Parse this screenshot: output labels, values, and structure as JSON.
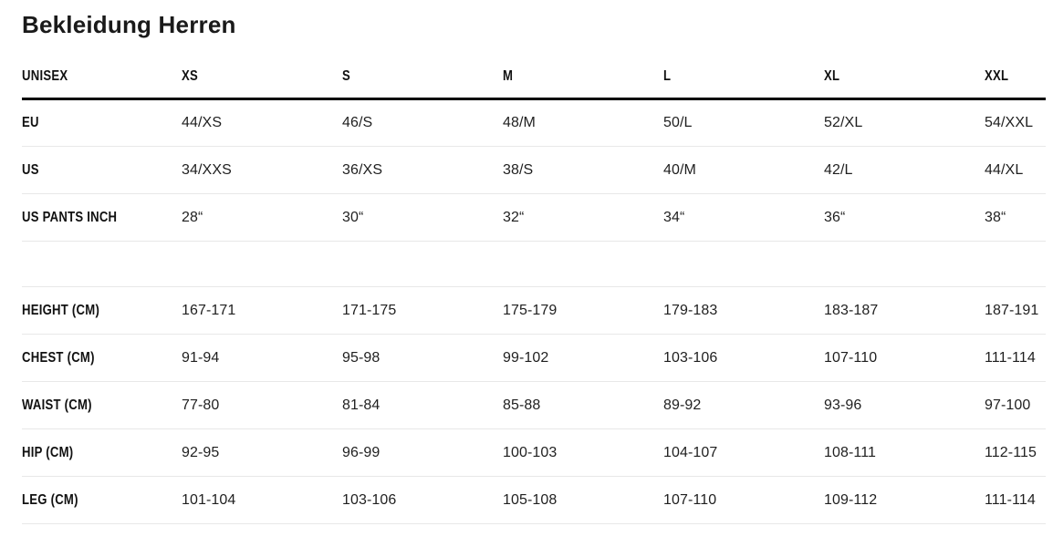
{
  "title": "Bekleidung Herren",
  "colors": {
    "text": "#1a1a1a",
    "divider": "#e8e8e8",
    "header_rule": "#000000"
  },
  "table": {
    "header": [
      "UNISEX",
      "XS",
      "S",
      "M",
      "L",
      "XL",
      "XXL"
    ],
    "sections": [
      {
        "name": "sizes",
        "rows": [
          {
            "label": "EU",
            "values": [
              "44/XS",
              "46/S",
              "48/M",
              "50/L",
              "52/XL",
              "54/XXL"
            ]
          },
          {
            "label": "US",
            "values": [
              "34/XXS",
              "36/XS",
              "38/S",
              "40/M",
              "42/L",
              "44/XL"
            ]
          },
          {
            "label": "US PANTS INCH",
            "values": [
              "28“",
              "30“",
              "32“",
              "34“",
              "36“",
              "38“"
            ]
          }
        ]
      },
      {
        "name": "measurements",
        "rows": [
          {
            "label": "HEIGHT (CM)",
            "values": [
              "167-171",
              "171-175",
              "175-179",
              "179-183",
              "183-187",
              "187-191"
            ]
          },
          {
            "label": "CHEST (CM)",
            "values": [
              "91-94",
              "95-98",
              "99-102",
              "103-106",
              "107-110",
              "111-114"
            ]
          },
          {
            "label": "WAIST (CM)",
            "values": [
              "77-80",
              "81-84",
              "85-88",
              "89-92",
              "93-96",
              "97-100"
            ]
          },
          {
            "label": "HIP (CM)",
            "values": [
              "92-95",
              "96-99",
              "100-103",
              "104-107",
              "108-111",
              "112-115"
            ]
          },
          {
            "label": "LEG (CM)",
            "values": [
              "101-104",
              "103-106",
              "105-108",
              "107-110",
              "109-112",
              "111-114"
            ]
          }
        ]
      }
    ]
  }
}
